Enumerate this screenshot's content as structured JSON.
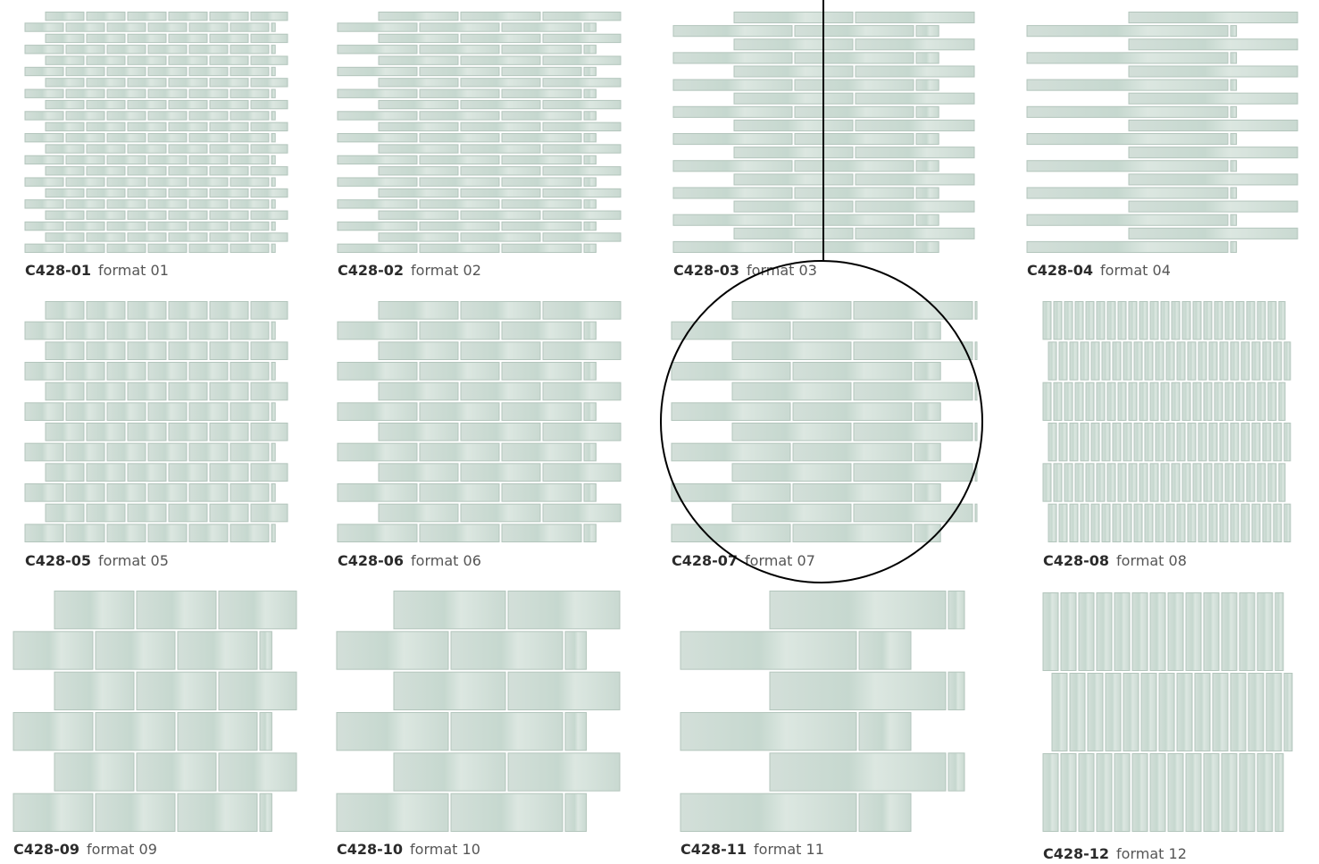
{
  "items": [
    {
      "code": "C428-01",
      "format": "format 01"
    },
    {
      "code": "C428-02",
      "format": "format 02"
    },
    {
      "code": "C428-03",
      "format": "format 03"
    },
    {
      "code": "C428-04",
      "format": "format 04"
    },
    {
      "code": "C428-05",
      "format": "format 05"
    },
    {
      "code": "C428-06",
      "format": "format 06"
    },
    {
      "code": "C428-07",
      "format": "format 07"
    },
    {
      "code": "C428-08",
      "format": "format 08"
    },
    {
      "code": "C428-09",
      "format": "format 09"
    },
    {
      "code": "C428-10",
      "format": "format 10"
    },
    {
      "code": "C428-11",
      "format": "format 11"
    },
    {
      "code": "C428-12",
      "format": "format 12"
    }
  ]
}
